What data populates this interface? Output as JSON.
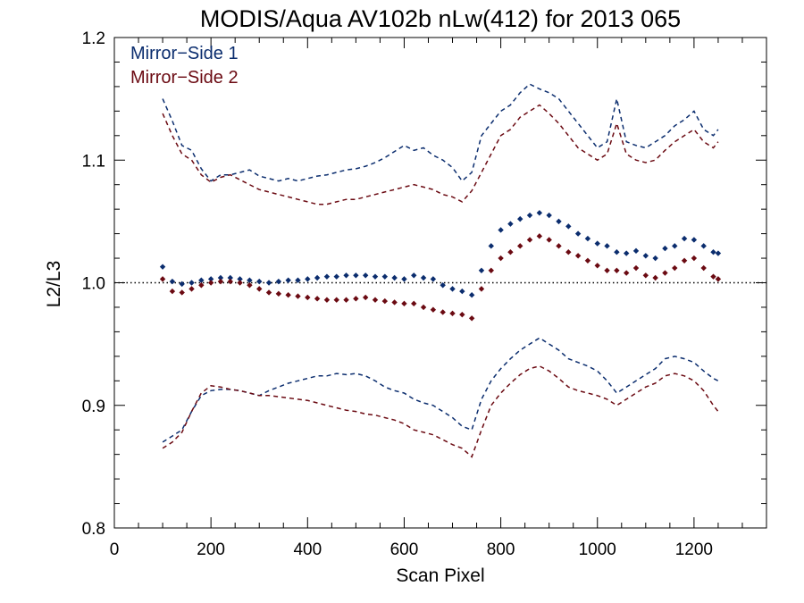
{
  "chart_data": {
    "type": "scatter",
    "title": "MODIS/Aqua AV102b nLw(412) for 2013 065",
    "xlabel": "Scan Pixel",
    "ylabel": "L2/L3",
    "xlim": [
      0,
      1350
    ],
    "ylim": [
      0.8,
      1.2
    ],
    "xticks": [
      "0",
      "200",
      "400",
      "600",
      "800",
      "1000",
      "1200"
    ],
    "yticks": [
      "0.8",
      "0.9",
      "1.0",
      "1.1",
      "1.2"
    ],
    "reference_line": 1.0,
    "legend_position": "top-left",
    "series": [
      {
        "name": "Mirror−Side 1",
        "color": "#0b2d6e",
        "marker": "diamond",
        "x": [
          100,
          120,
          140,
          160,
          180,
          200,
          220,
          240,
          260,
          280,
          300,
          320,
          340,
          360,
          380,
          400,
          420,
          440,
          460,
          480,
          500,
          520,
          540,
          560,
          580,
          600,
          620,
          640,
          660,
          680,
          700,
          720,
          740,
          760,
          780,
          800,
          820,
          840,
          860,
          880,
          900,
          920,
          940,
          960,
          980,
          1000,
          1020,
          1040,
          1060,
          1080,
          1100,
          1120,
          1140,
          1160,
          1180,
          1200,
          1220,
          1240,
          1250
        ],
        "values": [
          1.013,
          1.001,
          0.999,
          1.0,
          1.002,
          1.003,
          1.004,
          1.004,
          1.003,
          1.002,
          1.001,
          1.0,
          1.001,
          1.002,
          1.002,
          1.003,
          1.004,
          1.005,
          1.005,
          1.006,
          1.006,
          1.006,
          1.005,
          1.005,
          1.004,
          1.003,
          1.006,
          1.004,
          1.003,
          0.998,
          0.995,
          0.993,
          0.99,
          1.01,
          1.03,
          1.043,
          1.048,
          1.052,
          1.055,
          1.057,
          1.055,
          1.05,
          1.046,
          1.04,
          1.036,
          1.032,
          1.03,
          1.025,
          1.024,
          1.026,
          1.022,
          1.02,
          1.028,
          1.03,
          1.036,
          1.035,
          1.03,
          1.025,
          1.024
        ]
      },
      {
        "name": "Mirror−Side 2",
        "color": "#6b0a12",
        "marker": "diamond",
        "x": [
          100,
          120,
          140,
          160,
          180,
          200,
          220,
          240,
          260,
          280,
          300,
          320,
          340,
          360,
          380,
          400,
          420,
          440,
          460,
          480,
          500,
          520,
          540,
          560,
          580,
          600,
          620,
          640,
          660,
          680,
          700,
          720,
          740,
          760,
          780,
          800,
          820,
          840,
          860,
          880,
          900,
          920,
          940,
          960,
          980,
          1000,
          1020,
          1040,
          1060,
          1080,
          1100,
          1120,
          1140,
          1160,
          1180,
          1200,
          1220,
          1240,
          1250
        ],
        "values": [
          1.003,
          0.993,
          0.992,
          0.995,
          0.998,
          1.0,
          1.001,
          1.001,
          1.0,
          0.998,
          0.995,
          0.992,
          0.991,
          0.99,
          0.989,
          0.988,
          0.987,
          0.986,
          0.986,
          0.986,
          0.987,
          0.988,
          0.986,
          0.985,
          0.984,
          0.983,
          0.983,
          0.98,
          0.978,
          0.976,
          0.975,
          0.974,
          0.971,
          0.995,
          1.01,
          1.02,
          1.025,
          1.03,
          1.035,
          1.038,
          1.035,
          1.03,
          1.025,
          1.022,
          1.018,
          1.014,
          1.01,
          1.01,
          1.008,
          1.012,
          1.006,
          1.004,
          1.008,
          1.012,
          1.018,
          1.02,
          1.012,
          1.005,
          1.003
        ]
      },
      {
        "name": "",
        "color": "#0b2d6e",
        "line_style": "dashed",
        "x": [
          100,
          120,
          140,
          160,
          180,
          200,
          220,
          240,
          260,
          280,
          300,
          320,
          340,
          360,
          380,
          400,
          420,
          440,
          460,
          480,
          500,
          520,
          540,
          560,
          580,
          600,
          620,
          640,
          660,
          680,
          700,
          720,
          740,
          760,
          780,
          800,
          820,
          840,
          860,
          880,
          900,
          920,
          940,
          960,
          980,
          1000,
          1020,
          1040,
          1060,
          1080,
          1100,
          1120,
          1140,
          1160,
          1180,
          1200,
          1220,
          1240,
          1250
        ],
        "values": [
          1.15,
          1.132,
          1.112,
          1.108,
          1.093,
          1.083,
          1.088,
          1.088,
          1.09,
          1.092,
          1.087,
          1.085,
          1.083,
          1.085,
          1.083,
          1.085,
          1.087,
          1.088,
          1.09,
          1.092,
          1.093,
          1.095,
          1.098,
          1.102,
          1.107,
          1.112,
          1.108,
          1.11,
          1.104,
          1.1,
          1.094,
          1.083,
          1.09,
          1.12,
          1.13,
          1.14,
          1.145,
          1.155,
          1.162,
          1.158,
          1.155,
          1.15,
          1.14,
          1.13,
          1.12,
          1.11,
          1.115,
          1.15,
          1.115,
          1.112,
          1.11,
          1.115,
          1.12,
          1.128,
          1.133,
          1.14,
          1.125,
          1.12,
          1.125
        ]
      },
      {
        "name": "",
        "color": "#6b0a12",
        "line_style": "dashed",
        "x": [
          100,
          120,
          140,
          160,
          180,
          200,
          220,
          240,
          260,
          280,
          300,
          320,
          340,
          360,
          380,
          400,
          420,
          440,
          460,
          480,
          500,
          520,
          540,
          560,
          580,
          600,
          620,
          640,
          660,
          680,
          700,
          720,
          740,
          760,
          780,
          800,
          820,
          840,
          860,
          880,
          900,
          920,
          940,
          960,
          980,
          1000,
          1020,
          1040,
          1060,
          1080,
          1100,
          1120,
          1140,
          1160,
          1180,
          1200,
          1220,
          1240,
          1250
        ],
        "values": [
          1.138,
          1.12,
          1.105,
          1.1,
          1.088,
          1.082,
          1.086,
          1.088,
          1.084,
          1.08,
          1.076,
          1.074,
          1.072,
          1.07,
          1.068,
          1.066,
          1.064,
          1.064,
          1.066,
          1.068,
          1.068,
          1.07,
          1.072,
          1.074,
          1.076,
          1.078,
          1.08,
          1.078,
          1.076,
          1.072,
          1.07,
          1.066,
          1.075,
          1.09,
          1.105,
          1.12,
          1.125,
          1.135,
          1.14,
          1.145,
          1.138,
          1.13,
          1.12,
          1.11,
          1.105,
          1.1,
          1.105,
          1.13,
          1.105,
          1.1,
          1.098,
          1.1,
          1.108,
          1.115,
          1.12,
          1.125,
          1.115,
          1.11,
          1.115
        ]
      },
      {
        "name": "",
        "color": "#0b2d6e",
        "line_style": "dashed",
        "x": [
          100,
          120,
          140,
          160,
          180,
          200,
          220,
          240,
          260,
          280,
          300,
          320,
          340,
          360,
          380,
          400,
          420,
          440,
          460,
          480,
          500,
          520,
          540,
          560,
          580,
          600,
          620,
          640,
          660,
          680,
          700,
          720,
          740,
          760,
          780,
          800,
          820,
          840,
          860,
          880,
          900,
          920,
          940,
          960,
          980,
          1000,
          1020,
          1040,
          1060,
          1080,
          1100,
          1120,
          1140,
          1160,
          1180,
          1200,
          1220,
          1240,
          1250
        ],
        "values": [
          0.87,
          0.875,
          0.88,
          0.895,
          0.908,
          0.912,
          0.913,
          0.913,
          0.912,
          0.91,
          0.908,
          0.912,
          0.915,
          0.918,
          0.92,
          0.922,
          0.924,
          0.924,
          0.926,
          0.925,
          0.926,
          0.924,
          0.92,
          0.915,
          0.912,
          0.91,
          0.905,
          0.902,
          0.9,
          0.895,
          0.89,
          0.883,
          0.88,
          0.905,
          0.92,
          0.93,
          0.938,
          0.945,
          0.95,
          0.955,
          0.95,
          0.945,
          0.938,
          0.935,
          0.932,
          0.928,
          0.92,
          0.91,
          0.915,
          0.92,
          0.925,
          0.93,
          0.938,
          0.94,
          0.938,
          0.935,
          0.928,
          0.922,
          0.92
        ]
      },
      {
        "name": "",
        "color": "#6b0a12",
        "line_style": "dashed",
        "x": [
          100,
          120,
          140,
          160,
          180,
          200,
          220,
          240,
          260,
          280,
          300,
          320,
          340,
          360,
          380,
          400,
          420,
          440,
          460,
          480,
          500,
          520,
          540,
          560,
          580,
          600,
          620,
          640,
          660,
          680,
          700,
          720,
          740,
          760,
          780,
          800,
          820,
          840,
          860,
          880,
          900,
          920,
          940,
          960,
          980,
          1000,
          1020,
          1040,
          1060,
          1080,
          1100,
          1120,
          1140,
          1160,
          1180,
          1200,
          1220,
          1240,
          1250
        ],
        "values": [
          0.865,
          0.87,
          0.878,
          0.895,
          0.91,
          0.916,
          0.915,
          0.913,
          0.912,
          0.91,
          0.908,
          0.908,
          0.907,
          0.906,
          0.905,
          0.904,
          0.902,
          0.9,
          0.898,
          0.896,
          0.895,
          0.893,
          0.892,
          0.89,
          0.888,
          0.885,
          0.88,
          0.878,
          0.876,
          0.872,
          0.868,
          0.865,
          0.858,
          0.88,
          0.9,
          0.91,
          0.918,
          0.925,
          0.93,
          0.932,
          0.928,
          0.922,
          0.915,
          0.912,
          0.91,
          0.908,
          0.905,
          0.9,
          0.905,
          0.91,
          0.915,
          0.918,
          0.924,
          0.926,
          0.924,
          0.92,
          0.912,
          0.9,
          0.895
        ]
      }
    ]
  }
}
